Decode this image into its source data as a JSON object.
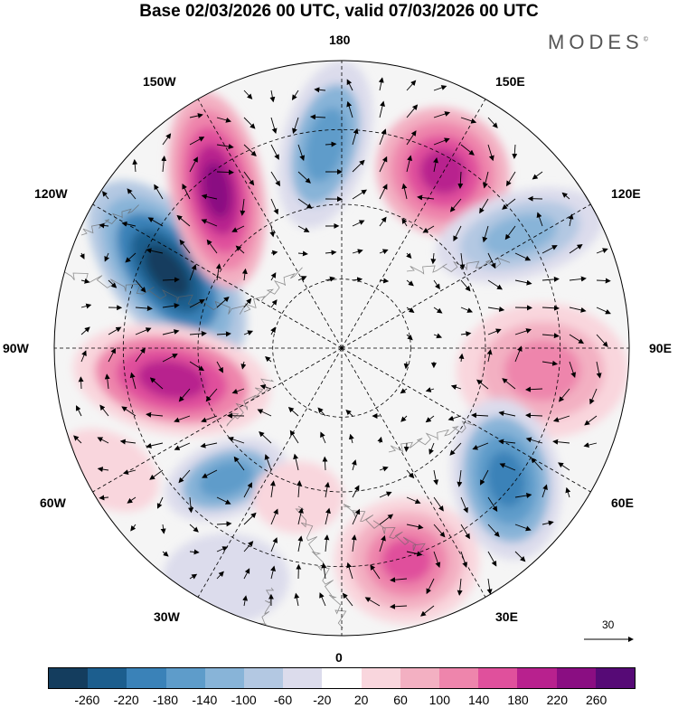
{
  "title": "Base 02/03/2026 00 UTC, valid 07/03/2026 00 UTC",
  "brand": "MODES",
  "brand_mark": "©",
  "longitude_labels": {
    "top": "180",
    "bottom": "0",
    "left": "90W",
    "right": "90E",
    "upper_left_1": "150W",
    "upper_left_2": "120W",
    "lower_left_1": "60W",
    "lower_left_2": "30W",
    "upper_right_1": "150E",
    "upper_right_2": "120E",
    "lower_right_1": "60E",
    "lower_right_2": "30E"
  },
  "reference_vector": {
    "label": "30",
    "icon": "arrow-right-icon"
  },
  "colorbar": {
    "colors": [
      "#143d5e",
      "#1c5e8e",
      "#3a82b8",
      "#5e9cca",
      "#88b4d8",
      "#b3c8e2",
      "#dcdcec",
      "#ffffff",
      "#f9d6dd",
      "#f3b0c2",
      "#ee85ac",
      "#e0509c",
      "#b8218e",
      "#8a0e82",
      "#560a76"
    ],
    "ticks": [
      "-260",
      "-220",
      "-180",
      "-140",
      "-100",
      "-60",
      "-20",
      "20",
      "60",
      "100",
      "140",
      "180",
      "220",
      "260"
    ]
  }
}
